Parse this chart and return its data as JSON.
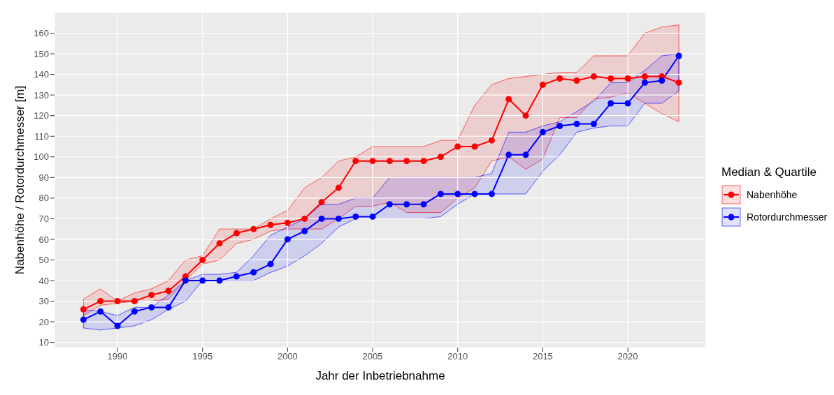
{
  "chart_data": {
    "type": "line",
    "xlabel": "Jahr der Inbetriebnahme",
    "ylabel": "Nabenhöhe / Rotordurchmesser [m]",
    "legend_title": "Median & Quartile",
    "x": [
      1988,
      1989,
      1990,
      1991,
      1992,
      1993,
      1994,
      1995,
      1996,
      1997,
      1998,
      1999,
      2000,
      2001,
      2002,
      2003,
      2004,
      2005,
      2006,
      2007,
      2008,
      2009,
      2010,
      2011,
      2012,
      2013,
      2014,
      2015,
      2016,
      2017,
      2018,
      2019,
      2020,
      2021,
      2022,
      2023
    ],
    "series": [
      {
        "name": "Nabenhöhe",
        "color": "#ff0000",
        "values": [
          26,
          30,
          30,
          30,
          33,
          35,
          42,
          50,
          58,
          63,
          65,
          67,
          68,
          70,
          78,
          85,
          98,
          98,
          98,
          98,
          98,
          100,
          105,
          105,
          108,
          128,
          120,
          135,
          138,
          137,
          139,
          138,
          138,
          139,
          139,
          136
        ],
        "lower": [
          23,
          28,
          29,
          30,
          30,
          31,
          40,
          48,
          50,
          58,
          60,
          64,
          65,
          65,
          65,
          70,
          76,
          76,
          78,
          73,
          73,
          73,
          80,
          85,
          98,
          100,
          94,
          99,
          119,
          119,
          128,
          129,
          131,
          126,
          121,
          117
        ],
        "upper": [
          31,
          36,
          30,
          34,
          36,
          40,
          50,
          52,
          65,
          65,
          65,
          70,
          74,
          85,
          90,
          98,
          100,
          105,
          105,
          105,
          105,
          108,
          108,
          125,
          135,
          138,
          139,
          140,
          141,
          141,
          149,
          149,
          149,
          160,
          163,
          164
        ]
      },
      {
        "name": "Rotordurchmesser",
        "color": "#0000ff",
        "values": [
          21,
          25,
          18,
          25,
          27,
          27,
          40,
          40,
          40,
          42,
          44,
          48,
          60,
          64,
          70,
          70,
          71,
          71,
          77,
          77,
          77,
          82,
          82,
          82,
          82,
          101,
          101,
          112,
          115,
          116,
          116,
          126,
          126,
          136,
          137,
          149
        ],
        "lower": [
          17,
          16,
          17,
          18,
          21,
          26,
          30,
          40,
          40,
          40,
          40,
          44,
          47,
          52,
          58,
          66,
          70,
          70,
          70,
          70,
          70,
          71,
          77,
          82,
          82,
          82,
          82,
          93,
          101,
          112,
          114,
          115,
          115,
          126,
          126,
          132
        ],
        "upper": [
          26,
          25,
          23,
          27,
          27,
          33,
          40,
          43,
          43,
          44,
          52,
          62,
          66,
          70,
          77,
          77,
          80,
          80,
          90,
          90,
          90,
          90,
          90,
          90,
          92,
          112,
          112,
          115,
          117,
          122,
          127,
          136,
          136,
          142,
          149,
          150
        ]
      }
    ],
    "xlim": [
      1986.3,
      2024.6
    ],
    "xticks": [
      1990,
      1995,
      2000,
      2005,
      2010,
      2015,
      2020
    ],
    "ylim": [
      7.5,
      170
    ],
    "yticks": [
      10,
      20,
      30,
      40,
      50,
      60,
      70,
      80,
      90,
      100,
      110,
      120,
      130,
      140,
      150,
      160
    ],
    "grid": true,
    "legend": "right",
    "marker": "circle",
    "line_style": "solid"
  }
}
